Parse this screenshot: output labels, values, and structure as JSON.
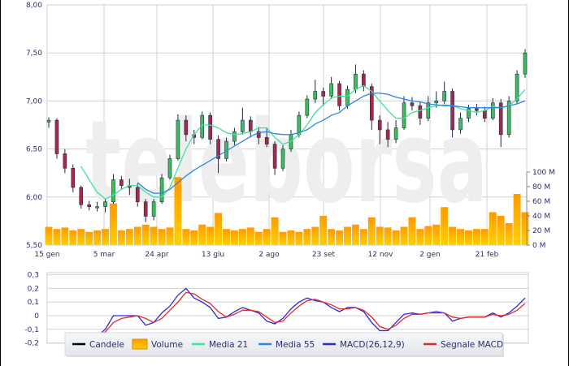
{
  "watermark": "teleborsa",
  "colors": {
    "up": "#3cbf5a",
    "down": "#a8284a",
    "wick": "#1e2a44",
    "volume": "#ffa500",
    "ma21": "#3fe39a",
    "ma55": "#2f86e0",
    "macd": "#2b2bd6",
    "signal": "#e02a2a",
    "grid": "#d0d0d0"
  },
  "chart_data": [
    {
      "type": "candlestick",
      "ylim": [
        5.5,
        8.0
      ],
      "yticks": [
        "8,00",
        "7,50",
        "7,00",
        "6,50",
        "6,00",
        "5,50"
      ],
      "yticks_values": [
        8.0,
        7.5,
        7.0,
        6.5,
        6.0,
        5.5
      ],
      "xticks": [
        "15 gen",
        "5 mar",
        "24 apr",
        "13 giu",
        "2 ago",
        "23 set",
        "12 nov",
        "2 gen",
        "21 feb"
      ],
      "grid": true,
      "candles": [
        [
          6.78,
          6.83,
          6.72,
          6.8
        ],
        [
          6.8,
          6.82,
          6.4,
          6.45
        ],
        [
          6.45,
          6.5,
          6.25,
          6.3
        ],
        [
          6.3,
          6.34,
          6.05,
          6.1
        ],
        [
          6.1,
          6.12,
          5.88,
          5.92
        ],
        [
          5.92,
          5.96,
          5.86,
          5.9
        ],
        [
          5.9,
          5.95,
          5.85,
          5.9
        ],
        [
          5.9,
          5.98,
          5.84,
          5.95
        ],
        [
          5.95,
          6.24,
          5.93,
          6.18
        ],
        [
          6.18,
          6.22,
          6.08,
          6.12
        ],
        [
          6.12,
          6.19,
          6.02,
          6.1
        ],
        [
          6.1,
          6.14,
          5.9,
          5.95
        ],
        [
          5.95,
          5.98,
          5.74,
          5.8
        ],
        [
          5.8,
          5.98,
          5.76,
          5.95
        ],
        [
          5.95,
          6.24,
          5.93,
          6.2
        ],
        [
          6.2,
          6.44,
          6.18,
          6.4
        ],
        [
          6.4,
          6.86,
          6.38,
          6.8
        ],
        [
          6.8,
          6.85,
          6.58,
          6.65
        ],
        [
          6.65,
          6.7,
          6.55,
          6.62
        ],
        [
          6.62,
          6.89,
          6.6,
          6.85
        ],
        [
          6.85,
          6.88,
          6.55,
          6.6
        ],
        [
          6.6,
          6.64,
          6.25,
          6.4
        ],
        [
          6.4,
          6.62,
          6.37,
          6.58
        ],
        [
          6.58,
          6.72,
          6.54,
          6.68
        ],
        [
          6.68,
          6.93,
          6.65,
          6.8
        ],
        [
          6.8,
          6.84,
          6.62,
          6.68
        ],
        [
          6.68,
          6.73,
          6.55,
          6.62
        ],
        [
          6.62,
          6.72,
          6.52,
          6.55
        ],
        [
          6.55,
          6.58,
          6.23,
          6.3
        ],
        [
          6.3,
          6.54,
          6.27,
          6.5
        ],
        [
          6.5,
          6.7,
          6.47,
          6.65
        ],
        [
          6.65,
          6.89,
          6.62,
          6.85
        ],
        [
          6.85,
          7.06,
          6.82,
          7.02
        ],
        [
          7.02,
          7.22,
          6.98,
          7.1
        ],
        [
          7.1,
          7.14,
          6.95,
          7.05
        ],
        [
          7.05,
          7.25,
          7.02,
          7.18
        ],
        [
          7.18,
          7.21,
          6.9,
          6.95
        ],
        [
          6.95,
          7.16,
          6.92,
          7.12
        ],
        [
          7.12,
          7.38,
          7.08,
          7.28
        ],
        [
          7.28,
          7.32,
          7.1,
          7.15
        ],
        [
          7.15,
          7.18,
          6.7,
          6.8
        ],
        [
          6.8,
          6.85,
          6.55,
          6.7
        ],
        [
          6.7,
          6.78,
          6.52,
          6.6
        ],
        [
          6.6,
          6.8,
          6.56,
          6.72
        ],
        [
          6.72,
          7.05,
          6.7,
          6.98
        ],
        [
          6.98,
          7.04,
          6.9,
          6.95
        ],
        [
          6.95,
          6.99,
          6.75,
          6.82
        ],
        [
          6.82,
          7.05,
          6.79,
          6.98
        ],
        [
          6.98,
          7.1,
          6.93,
          7.0
        ],
        [
          7.0,
          7.2,
          6.97,
          7.1
        ],
        [
          7.1,
          7.13,
          6.62,
          6.7
        ],
        [
          6.7,
          6.88,
          6.66,
          6.82
        ],
        [
          6.82,
          6.96,
          6.78,
          6.92
        ],
        [
          6.92,
          6.97,
          6.85,
          6.9
        ],
        [
          6.9,
          6.94,
          6.78,
          6.82
        ],
        [
          6.82,
          7.03,
          6.8,
          6.98
        ],
        [
          6.98,
          7.02,
          6.52,
          6.65
        ],
        [
          6.65,
          7.05,
          6.62,
          7.0
        ],
        [
          7.0,
          7.32,
          6.97,
          7.28
        ],
        [
          7.28,
          7.54,
          7.24,
          7.5
        ]
      ],
      "ma21": [
        null,
        null,
        null,
        null,
        6.32,
        6.18,
        6.05,
        5.98,
        6.02,
        6.08,
        6.12,
        6.12,
        6.05,
        6.0,
        6.0,
        6.1,
        6.3,
        6.5,
        6.65,
        6.75,
        6.75,
        6.72,
        6.67,
        6.65,
        6.66,
        6.68,
        6.72,
        6.72,
        6.62,
        6.55,
        6.58,
        6.65,
        6.75,
        6.88,
        6.96,
        7.03,
        7.05,
        7.05,
        7.12,
        7.16,
        7.1,
        7.0,
        6.9,
        6.82,
        6.82,
        6.88,
        6.9,
        6.93,
        6.95,
        6.96,
        6.95,
        6.92,
        6.9,
        6.88,
        6.9,
        6.94,
        6.93,
        6.95,
        7.02,
        7.12
      ],
      "ma55": [
        null,
        null,
        null,
        null,
        null,
        null,
        null,
        null,
        null,
        null,
        null,
        6.15,
        6.08,
        6.04,
        6.04,
        6.08,
        6.15,
        6.22,
        6.28,
        6.33,
        6.38,
        6.43,
        6.48,
        6.53,
        6.58,
        6.63,
        6.67,
        6.68,
        6.66,
        6.65,
        6.65,
        6.67,
        6.7,
        6.76,
        6.8,
        6.85,
        6.88,
        6.95,
        7.0,
        7.05,
        7.08,
        7.08,
        7.07,
        7.04,
        7.02,
        7.0,
        6.99,
        6.97,
        6.96,
        6.95,
        6.95,
        6.94,
        6.93,
        6.93,
        6.93,
        6.93,
        6.93,
        6.95,
        6.97,
        7.0
      ]
    },
    {
      "type": "bar",
      "ylim": [
        0,
        100
      ],
      "yticks": [
        "100 M",
        "80 M",
        "60 M",
        "40 M",
        "20 M",
        "0 M"
      ],
      "yticks_values": [
        100,
        80,
        60,
        40,
        20,
        0
      ],
      "values": [
        25,
        22,
        24,
        20,
        22,
        18,
        20,
        22,
        57,
        20,
        22,
        25,
        28,
        25,
        22,
        24,
        93,
        22,
        20,
        28,
        25,
        44,
        22,
        20,
        22,
        24,
        18,
        22,
        38,
        18,
        20,
        18,
        22,
        25,
        40,
        22,
        20,
        25,
        28,
        22,
        38,
        25,
        24,
        20,
        25,
        38,
        22,
        26,
        28,
        52,
        25,
        22,
        20,
        22,
        22,
        45,
        40,
        30,
        70,
        45
      ]
    },
    {
      "type": "line",
      "ylim": [
        -0.2,
        0.3
      ],
      "yticks": [
        "0,3",
        "0,2",
        "0,1",
        "0",
        "-0,1",
        "-0,2"
      ],
      "yticks_values": [
        0.3,
        0.2,
        0.1,
        0,
        -0.1,
        -0.2
      ],
      "macd": [
        null,
        null,
        null,
        null,
        null,
        -0.2,
        -0.15,
        -0.1,
        0.0,
        0.0,
        0.0,
        0.0,
        -0.07,
        -0.05,
        0.02,
        0.07,
        0.15,
        0.2,
        0.13,
        0.1,
        0.06,
        -0.02,
        -0.01,
        0.03,
        0.06,
        0.04,
        0.02,
        -0.04,
        -0.06,
        -0.02,
        0.05,
        0.1,
        0.13,
        0.11,
        0.1,
        0.06,
        0.03,
        0.06,
        0.06,
        0.03,
        -0.05,
        -0.11,
        -0.11,
        -0.05,
        0.01,
        0.02,
        0.01,
        0.02,
        0.03,
        0.02,
        -0.04,
        -0.02,
        -0.01,
        -0.01,
        -0.01,
        0.02,
        -0.01,
        0.02,
        0.07,
        0.13
      ],
      "signal": [
        null,
        null,
        null,
        null,
        null,
        null,
        -0.14,
        -0.12,
        -0.05,
        -0.02,
        -0.01,
        0.0,
        -0.02,
        -0.05,
        -0.02,
        0.04,
        0.1,
        0.17,
        0.16,
        0.12,
        0.09,
        0.03,
        -0.01,
        0.01,
        0.04,
        0.04,
        0.03,
        -0.01,
        -0.05,
        -0.04,
        0.02,
        0.07,
        0.11,
        0.12,
        0.1,
        0.08,
        0.05,
        0.05,
        0.06,
        0.04,
        -0.01,
        -0.08,
        -0.1,
        -0.07,
        -0.02,
        0.01,
        0.01,
        0.02,
        0.02,
        0.02,
        -0.01,
        -0.02,
        -0.01,
        -0.01,
        -0.01,
        0.01,
        0.0,
        0.01,
        0.04,
        0.09
      ]
    }
  ],
  "legend": [
    {
      "label": "Candele",
      "kind": "line",
      "color": "#000000"
    },
    {
      "label": "Volume",
      "kind": "box",
      "color": "#ffa500"
    },
    {
      "label": "Media 21",
      "kind": "line",
      "color": "#3fe39a"
    },
    {
      "label": "Media 55",
      "kind": "line",
      "color": "#2f86e0"
    },
    {
      "label": "MACD(26,12,9)",
      "kind": "line",
      "color": "#2b2bd6"
    },
    {
      "label": "Segnale MACD",
      "kind": "line",
      "color": "#e02a2a"
    }
  ]
}
